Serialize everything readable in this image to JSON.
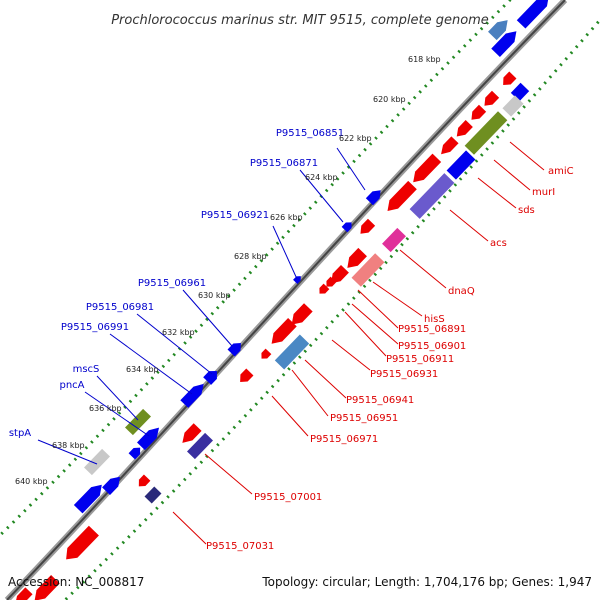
{
  "title": "Prochlorococcus marinus str. MIT 9515, complete genome",
  "footer": {
    "accession": "Accession: NC_008817",
    "topology": "Topology: circular; Length: 1,704,176 bp; Genes: 1,947"
  },
  "ticks": [
    "618 kbp",
    "620 kbp",
    "622 kbp",
    "624 kbp",
    "626 kbp",
    "628 kbp",
    "630 kbp",
    "632 kbp",
    "634 kbp",
    "636 kbp",
    "638 kbp",
    "640 kbp"
  ],
  "colors": {
    "forward_label": "#0000cc",
    "reverse_label": "#dd0000",
    "forward_gene": "#0000ee",
    "reverse_gene": "#ee0000",
    "backbone": "#888888",
    "tick_dots": "#228822"
  },
  "forward_labels": [
    "P9515_06851",
    "P9515_06871",
    "P9515_06921",
    "P9515_06961",
    "P9515_06981",
    "P9515_06991",
    "mscS",
    "pncA",
    "stpA"
  ],
  "reverse_labels": [
    "amiC",
    "murI",
    "sds",
    "acs",
    "dnaQ",
    "hisS",
    "P9515_06891",
    "P9515_06901",
    "P9515_06911",
    "P9515_06931",
    "P9515_06941",
    "P9515_06951",
    "P9515_06971",
    "P9515_07001",
    "P9515_07031"
  ]
}
